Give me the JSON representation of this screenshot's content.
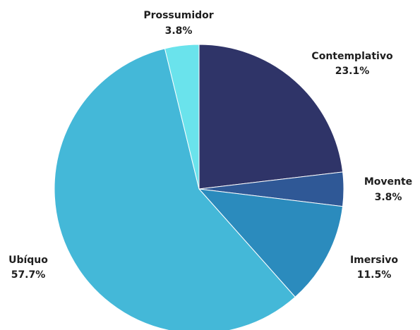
{
  "chart_data": {
    "type": "pie",
    "title": "",
    "slices": [
      {
        "label": "Contemplativo",
        "value": 23.1,
        "display": "23.1%",
        "color": "#2f3468"
      },
      {
        "label": "Movente",
        "value": 3.8,
        "display": "3.8%",
        "color": "#2f5896"
      },
      {
        "label": "Imersivo",
        "value": 11.5,
        "display": "11.5%",
        "color": "#2b8bbd"
      },
      {
        "label": "Ubíquo",
        "value": 57.7,
        "display": "57.7%",
        "color": "#44b8d8"
      },
      {
        "label": "Prossumidor",
        "value": 3.8,
        "display": "3.8%",
        "color": "#6ae3ec"
      }
    ],
    "start_angle": "top",
    "direction": "clockwise"
  }
}
